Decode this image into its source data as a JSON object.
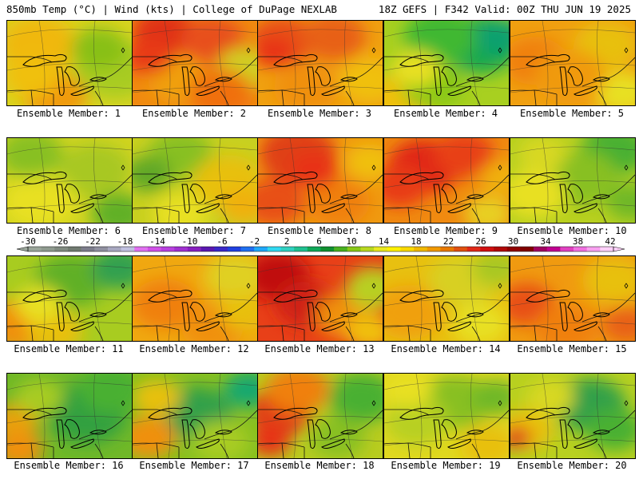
{
  "header": {
    "left": "850mb Temp (°C) | Wind (kts) | College of DuPage NEXLAB",
    "right": "18Z GEFS | F342 Valid: 00Z THU JUN 19 2025"
  },
  "colorbar": {
    "labels": [
      "-30",
      "-26",
      "-22",
      "-18",
      "-14",
      "-10",
      "-6",
      "-2",
      "2",
      "6",
      "10",
      "14",
      "18",
      "22",
      "26",
      "30",
      "34",
      "38",
      "42"
    ],
    "colors": [
      "#9aa59a",
      "#8f9a8f",
      "#808a80",
      "#707a70",
      "#7d7d8c",
      "#9090a0",
      "#a8a8c0",
      "#c0c0e0",
      "#e070f0",
      "#d050e8",
      "#b840e0",
      "#a030d0",
      "#8820c0",
      "#5a18b0",
      "#3a28c8",
      "#2040e0",
      "#2070f0",
      "#20a8f8",
      "#30d8f0",
      "#30d0c0",
      "#20c090",
      "#10a858",
      "#109030",
      "#48b020",
      "#88c818",
      "#b8d820",
      "#e8e820",
      "#fff000",
      "#f8d800",
      "#f0b800",
      "#f09800",
      "#e87800",
      "#e05010",
      "#e02818",
      "#d01010",
      "#b00808",
      "#900000",
      "#800000",
      "#a00060",
      "#c00090",
      "#e040c0",
      "#f070e0",
      "#f8a0f0",
      "#fcd0f8"
    ]
  },
  "members": [
    {
      "label": "Ensemble Member: 1",
      "base": "#d8d420",
      "blobs": [
        [
          "#f0b810",
          40,
          30,
          48
        ],
        [
          "#a8cc20",
          135,
          60,
          50
        ],
        [
          "#f09a10",
          60,
          95,
          40
        ],
        [
          "#88c018",
          115,
          35,
          35
        ],
        [
          "#f0c010",
          30,
          70,
          35
        ]
      ]
    },
    {
      "label": "Ensemble Member: 2",
      "base": "#f08a10",
      "blobs": [
        [
          "#e03018",
          40,
          15,
          40
        ],
        [
          "#e8501a",
          100,
          25,
          40
        ],
        [
          "#d0d020",
          140,
          60,
          35
        ],
        [
          "#f0a010",
          60,
          75,
          40
        ],
        [
          "#e83a18",
          20,
          45,
          30
        ],
        [
          "#f07010",
          110,
          90,
          40
        ]
      ]
    },
    {
      "label": "Ensemble Member: 3",
      "base": "#f0a010",
      "blobs": [
        [
          "#e85018",
          30,
          25,
          42
        ],
        [
          "#e86018",
          95,
          20,
          40
        ],
        [
          "#f0c010",
          140,
          75,
          38
        ],
        [
          "#f09010",
          60,
          85,
          40
        ],
        [
          "#e83018",
          20,
          40,
          25
        ]
      ]
    },
    {
      "label": "Ensemble Member: 4",
      "base": "#a8d020",
      "blobs": [
        [
          "#18a850",
          120,
          30,
          48
        ],
        [
          "#40b830",
          70,
          20,
          45
        ],
        [
          "#f0c010",
          20,
          100,
          45
        ],
        [
          "#88c818",
          60,
          80,
          40
        ],
        [
          "#10a070",
          145,
          20,
          30
        ],
        [
          "#e8e020",
          40,
          60,
          30
        ]
      ]
    },
    {
      "label": "Ensemble Member: 5",
      "base": "#f0a010",
      "blobs": [
        [
          "#f08010",
          30,
          50,
          40
        ],
        [
          "#e8c010",
          120,
          30,
          40
        ],
        [
          "#e8e020",
          140,
          90,
          35
        ],
        [
          "#f09a10",
          75,
          70,
          45
        ]
      ]
    },
    {
      "label": "Ensemble Member: 6",
      "base": "#d0d420",
      "blobs": [
        [
          "#a8c820",
          110,
          40,
          45
        ],
        [
          "#60b028",
          140,
          95,
          35
        ],
        [
          "#e8e020",
          40,
          80,
          45
        ],
        [
          "#88c020",
          30,
          20,
          40
        ]
      ]
    },
    {
      "label": "Ensemble Member: 7",
      "base": "#c8d020",
      "blobs": [
        [
          "#88c020",
          60,
          20,
          40
        ],
        [
          "#60a828",
          20,
          45,
          30
        ],
        [
          "#e8c010",
          120,
          55,
          45
        ],
        [
          "#e8e020",
          60,
          95,
          35
        ],
        [
          "#f0b010",
          140,
          85,
          30
        ]
      ]
    },
    {
      "label": "Ensemble Member: 8",
      "base": "#f09a10",
      "blobs": [
        [
          "#e04018",
          50,
          20,
          48
        ],
        [
          "#e85018",
          20,
          80,
          40
        ],
        [
          "#f0c010",
          140,
          30,
          30
        ],
        [
          "#f08010",
          100,
          80,
          40
        ],
        [
          "#e83018",
          70,
          40,
          30
        ]
      ]
    },
    {
      "label": "Ensemble Member: 9",
      "base": "#f08a10",
      "blobs": [
        [
          "#e02818",
          50,
          35,
          45
        ],
        [
          "#e84018",
          100,
          20,
          38
        ],
        [
          "#f0b010",
          150,
          50,
          30
        ],
        [
          "#e8d020",
          130,
          95,
          30
        ],
        [
          "#e83a18",
          20,
          60,
          35
        ]
      ]
    },
    {
      "label": "Ensemble Member: 10",
      "base": "#b8d020",
      "blobs": [
        [
          "#48b030",
          130,
          15,
          42
        ],
        [
          "#88c020",
          90,
          50,
          45
        ],
        [
          "#e8e020",
          30,
          70,
          40
        ],
        [
          "#70b828",
          150,
          80,
          30
        ],
        [
          "#d8d820",
          40,
          20,
          30
        ]
      ]
    },
    {
      "label": "Ensemble Member: 11",
      "base": "#a8cc20",
      "blobs": [
        [
          "#60b028",
          80,
          30,
          45
        ],
        [
          "#30a050",
          140,
          15,
          35
        ],
        [
          "#f09010",
          20,
          85,
          45
        ],
        [
          "#e8c010",
          60,
          95,
          35
        ],
        [
          "#e8e020",
          40,
          60,
          30
        ]
      ]
    },
    {
      "label": "Ensemble Member: 12",
      "base": "#f0a810",
      "blobs": [
        [
          "#f08010",
          40,
          60,
          42
        ],
        [
          "#e0d020",
          130,
          25,
          40
        ],
        [
          "#f09010",
          100,
          90,
          38
        ],
        [
          "#e8c010",
          140,
          70,
          30
        ]
      ]
    },
    {
      "label": "Ensemble Member: 13",
      "base": "#e84018",
      "blobs": [
        [
          "#c01010",
          25,
          25,
          40
        ],
        [
          "#d02018",
          60,
          60,
          38
        ],
        [
          "#f09010",
          110,
          75,
          38
        ],
        [
          "#b8d020",
          145,
          40,
          35
        ],
        [
          "#f0c010",
          140,
          95,
          30
        ]
      ]
    },
    {
      "label": "Ensemble Member: 14",
      "base": "#e8c010",
      "blobs": [
        [
          "#f0a010",
          30,
          70,
          45
        ],
        [
          "#d8d020",
          100,
          30,
          45
        ],
        [
          "#a8c820",
          140,
          15,
          30
        ],
        [
          "#e8e020",
          120,
          85,
          35
        ]
      ]
    },
    {
      "label": "Ensemble Member: 15",
      "base": "#f09a10",
      "blobs": [
        [
          "#e85018",
          20,
          60,
          35
        ],
        [
          "#f08010",
          70,
          90,
          40
        ],
        [
          "#e8c010",
          130,
          30,
          40
        ],
        [
          "#e86018",
          145,
          85,
          30
        ]
      ]
    },
    {
      "label": "Ensemble Member: 16",
      "base": "#70b828",
      "blobs": [
        [
          "#30a040",
          100,
          50,
          50
        ],
        [
          "#48b030",
          130,
          20,
          40
        ],
        [
          "#e8a010",
          10,
          60,
          30
        ],
        [
          "#f09010",
          15,
          95,
          30
        ],
        [
          "#a8cc20",
          40,
          30,
          30
        ]
      ]
    },
    {
      "label": "Ensemble Member: 17",
      "base": "#88c020",
      "blobs": [
        [
          "#30a048",
          80,
          50,
          45
        ],
        [
          "#18a870",
          145,
          20,
          30
        ],
        [
          "#f09010",
          20,
          80,
          35
        ],
        [
          "#e8c010",
          30,
          30,
          30
        ],
        [
          "#a8cc20",
          110,
          85,
          35
        ]
      ]
    },
    {
      "label": "Ensemble Member: 18",
      "base": "#b8cc20",
      "blobs": [
        [
          "#e04018",
          25,
          50,
          40
        ],
        [
          "#f08010",
          50,
          20,
          40
        ],
        [
          "#48b030",
          130,
          30,
          42
        ],
        [
          "#88c020",
          100,
          80,
          35
        ],
        [
          "#e83018",
          15,
          85,
          25
        ]
      ]
    },
    {
      "label": "Ensemble Member: 19",
      "base": "#e0d820",
      "blobs": [
        [
          "#88c020",
          90,
          35,
          45
        ],
        [
          "#b8d020",
          40,
          60,
          40
        ],
        [
          "#e8e020",
          30,
          20,
          30
        ],
        [
          "#e8c010",
          130,
          90,
          35
        ],
        [
          "#70b828",
          140,
          30,
          30
        ]
      ]
    },
    {
      "label": "Ensemble Member: 20",
      "base": "#b8d020",
      "blobs": [
        [
          "#30a048",
          100,
          40,
          45
        ],
        [
          "#48b030",
          130,
          70,
          35
        ],
        [
          "#e8c010",
          20,
          70,
          35
        ],
        [
          "#e03018",
          8,
          80,
          18
        ],
        [
          "#d8d820",
          50,
          30,
          30
        ]
      ]
    }
  ]
}
